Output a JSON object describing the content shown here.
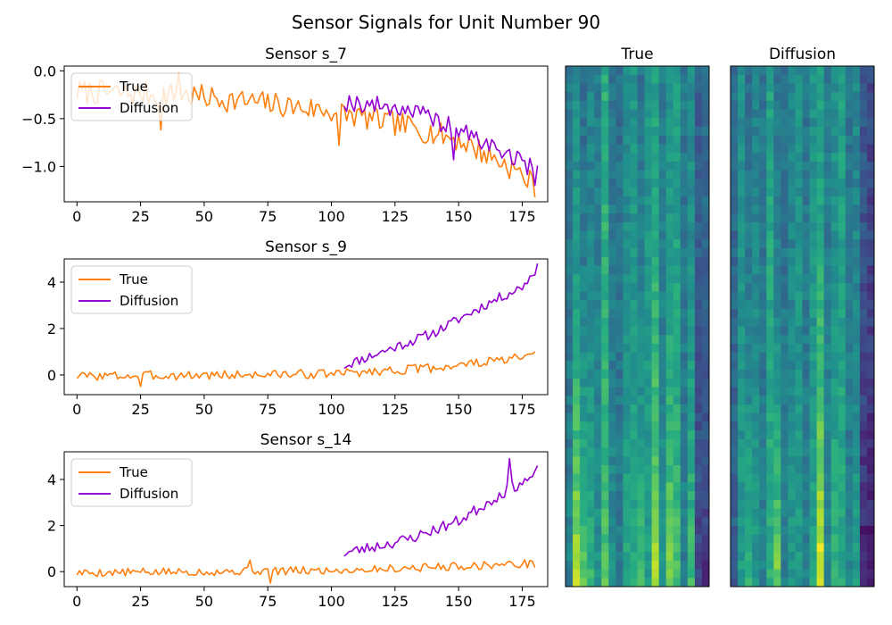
{
  "suptitle": "Sensor Signals for Unit Number 90",
  "legend": {
    "true_label": "True",
    "diff_label": "Diffusion",
    "placement": "upper left"
  },
  "colors": {
    "true": "#ff7f0e",
    "diffusion": "#9400d3"
  },
  "chart_data": [
    {
      "type": "line",
      "title": "Sensor s_7",
      "xlim": [
        -5,
        185
      ],
      "ylim": [
        -1.37,
        0.05
      ],
      "xticks": [
        0,
        25,
        50,
        75,
        100,
        125,
        150,
        175
      ],
      "yticks": [
        0.0,
        -0.5,
        -1.0
      ],
      "yticklabels": [
        "0.0",
        "−0.5",
        "−1.0"
      ],
      "series": [
        {
          "name": "True",
          "x_start": 0,
          "x_end": 180,
          "trend": [
            [
              0,
              -0.22
            ],
            [
              40,
              -0.25
            ],
            [
              70,
              -0.33
            ],
            [
              100,
              -0.42
            ],
            [
              130,
              -0.58
            ],
            [
              150,
              -0.72
            ],
            [
              170,
              -1.0
            ],
            [
              180,
              -1.2
            ]
          ],
          "noise": 0.13,
          "seed": 7,
          "spikes": [
            [
              33,
              -0.62
            ],
            [
              40,
              -0.02
            ],
            [
              103,
              -0.78
            ]
          ]
        },
        {
          "name": "Diffusion",
          "x_start": 105,
          "x_end": 181,
          "trend": [
            [
              105,
              -0.32
            ],
            [
              130,
              -0.4
            ],
            [
              150,
              -0.62
            ],
            [
              170,
              -0.88
            ],
            [
              181,
              -1.05
            ]
          ],
          "noise": 0.1,
          "seed": 19,
          "spikes": [
            [
              148,
              -0.93
            ],
            [
              180,
              -1.2
            ]
          ]
        }
      ]
    },
    {
      "type": "line",
      "title": "Sensor s_9",
      "xlim": [
        -5,
        185
      ],
      "ylim": [
        -0.85,
        5.0
      ],
      "xticks": [
        0,
        25,
        50,
        75,
        100,
        125,
        150,
        175
      ],
      "yticks": [
        0,
        2,
        4
      ],
      "yticklabels": [
        "0",
        "2",
        "4"
      ],
      "series": [
        {
          "name": "True",
          "x_start": 0,
          "x_end": 180,
          "trend": [
            [
              0,
              -0.05
            ],
            [
              60,
              0.0
            ],
            [
              100,
              0.05
            ],
            [
              140,
              0.3
            ],
            [
              180,
              0.8
            ]
          ],
          "noise": 0.2,
          "seed": 3,
          "spikes": [
            [
              25,
              -0.5
            ]
          ]
        },
        {
          "name": "Diffusion",
          "x_start": 105,
          "x_end": 181,
          "trend": [
            [
              105,
              0.4
            ],
            [
              120,
              1.0
            ],
            [
              140,
              1.8
            ],
            [
              160,
              3.0
            ],
            [
              175,
              3.8
            ],
            [
              181,
              4.6
            ]
          ],
          "noise": 0.22,
          "seed": 11,
          "spikes": [
            [
              106,
              0.35
            ],
            [
              181,
              4.8
            ]
          ]
        }
      ]
    },
    {
      "type": "line",
      "title": "Sensor s_14",
      "xlim": [
        -5,
        185
      ],
      "ylim": [
        -0.65,
        5.2
      ],
      "xticks": [
        0,
        25,
        50,
        75,
        100,
        125,
        150,
        175
      ],
      "yticks": [
        0,
        2,
        4
      ],
      "yticklabels": [
        "0",
        "2",
        "4"
      ],
      "series": [
        {
          "name": "True",
          "x_start": 0,
          "x_end": 180,
          "trend": [
            [
              0,
              -0.05
            ],
            [
              100,
              0.05
            ],
            [
              140,
              0.2
            ],
            [
              180,
              0.35
            ]
          ],
          "noise": 0.18,
          "seed": 5,
          "spikes": [
            [
              76,
              -0.5
            ],
            [
              68,
              0.5
            ]
          ]
        },
        {
          "name": "Diffusion",
          "x_start": 105,
          "x_end": 181,
          "trend": [
            [
              105,
              0.8
            ],
            [
              130,
              1.4
            ],
            [
              150,
              2.2
            ],
            [
              170,
              3.6
            ],
            [
              181,
              4.2
            ]
          ],
          "noise": 0.25,
          "seed": 23,
          "spikes": [
            [
              170,
              4.9
            ],
            [
              181,
              4.6
            ]
          ]
        }
      ]
    },
    {
      "type": "heatmap",
      "title": "True",
      "columns": 20,
      "rows": 60,
      "seed": 42,
      "column_levels": [
        0.4,
        0.5,
        0.38,
        0.45,
        0.42,
        0.62,
        0.4,
        0.38,
        0.47,
        0.52,
        0.4,
        0.52,
        0.58,
        0.42,
        0.52,
        0.56,
        0.4,
        0.48,
        0.3,
        0.35
      ],
      "bottom_boost": [
        0.05,
        0.4,
        0.4,
        0.2,
        0.1,
        0.1,
        0.1,
        0.05,
        0.15,
        0.1,
        0.3,
        0.05,
        0.3,
        0.1,
        0.3,
        0.15,
        0.05,
        0.2,
        -0.1,
        -0.2
      ]
    },
    {
      "type": "heatmap",
      "title": "Diffusion",
      "columns": 20,
      "rows": 60,
      "seed": 77,
      "column_levels": [
        0.35,
        0.5,
        0.38,
        0.45,
        0.4,
        0.58,
        0.4,
        0.38,
        0.45,
        0.5,
        0.4,
        0.5,
        0.55,
        0.42,
        0.5,
        0.56,
        0.4,
        0.46,
        0.28,
        0.22
      ],
      "bottom_boost": [
        -0.05,
        0.05,
        0.3,
        0.1,
        0.05,
        0.05,
        0.4,
        0.05,
        0.1,
        0.05,
        0.05,
        0.1,
        0.45,
        0.05,
        0.15,
        0.05,
        0.05,
        0.1,
        -0.2,
        -0.15
      ]
    }
  ]
}
